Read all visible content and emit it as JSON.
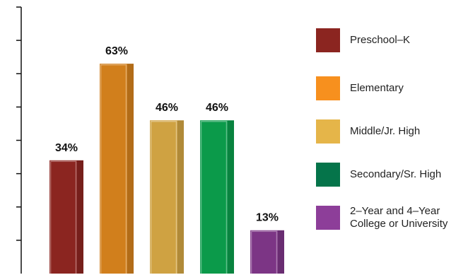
{
  "chart_data": {
    "type": "bar",
    "categories": [
      "Preschool–K",
      "Elementary",
      "Middle/Jr. High",
      "Secondary/Sr. High",
      "2–Year and 4–Year College or University"
    ],
    "values": [
      34,
      63,
      46,
      46,
      13
    ],
    "value_labels": [
      "34%",
      "63%",
      "46%",
      "46%",
      "13%"
    ],
    "ylim": [
      0,
      80
    ],
    "grid": false,
    "legend_position": "right",
    "colors": [
      "#8b2520",
      "#d17f1c",
      "#cfa242",
      "#0b9a4a",
      "#7c3585"
    ]
  },
  "legend": [
    {
      "lines": [
        "Preschool–K"
      ],
      "color": "#8b2520"
    },
    {
      "lines": [
        "Elementary"
      ],
      "color": "#f7901e"
    },
    {
      "lines": [
        "Middle/Jr. High"
      ],
      "color": "#e5b549"
    },
    {
      "lines": [
        "Secondary/Sr. High"
      ],
      "color": "#05744a"
    },
    {
      "lines": [
        "2–Year and 4–Year",
        "College or University"
      ],
      "color": "#8d3e99"
    }
  ]
}
